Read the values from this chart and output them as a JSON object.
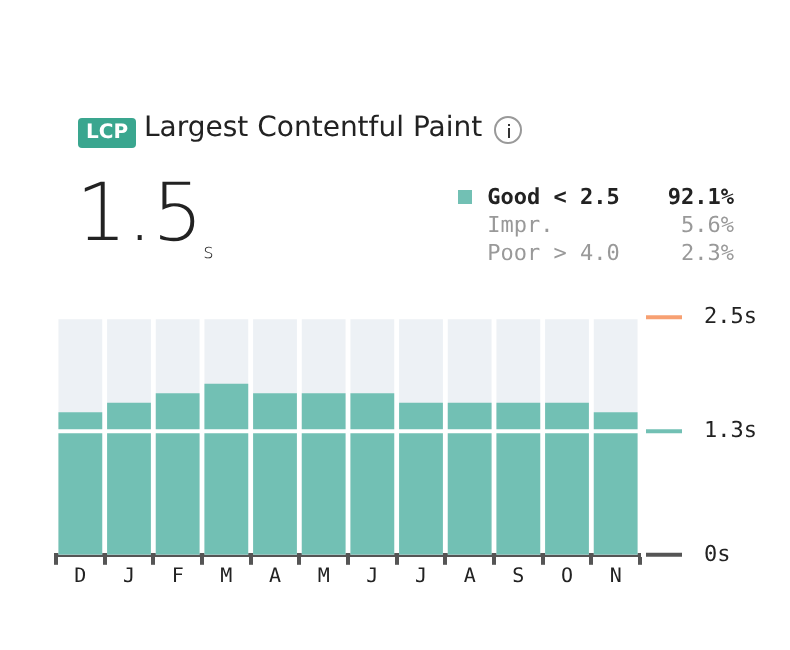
{
  "chart_data": {
    "type": "bar",
    "title": "Largest Contentful Paint",
    "annotations": [
      "LCP",
      "1.5$_{s}$",
      "92.1%",
      "Impr.",
      "5.6%",
      "Poor > 4.0",
      "2.3%"
    ],
    "categories": [
      "D",
      "J",
      "F",
      "M",
      "A",
      "M",
      "J",
      "J",
      "A",
      "S",
      "O",
      "N"
    ],
    "series": [
      {
        "name": "Good < 2.5",
        "color": "#72c0b4",
        "values": [
          1.5,
          1.6,
          1.7,
          1.8,
          1.7,
          1.7,
          1.7,
          1.6,
          1.6,
          1.6,
          1.6,
          1.5
        ]
      }
    ],
    "ylim": [
      0,
      2.5
    ],
    "yticks": [
      {
        "value": 0,
        "label": "0s"
      },
      {
        "value": 1.3,
        "label": "1.3s"
      },
      {
        "value": 2.5,
        "label": "2.5s"
      }
    ],
    "grid": "y",
    "legend": "top right"
  }
}
